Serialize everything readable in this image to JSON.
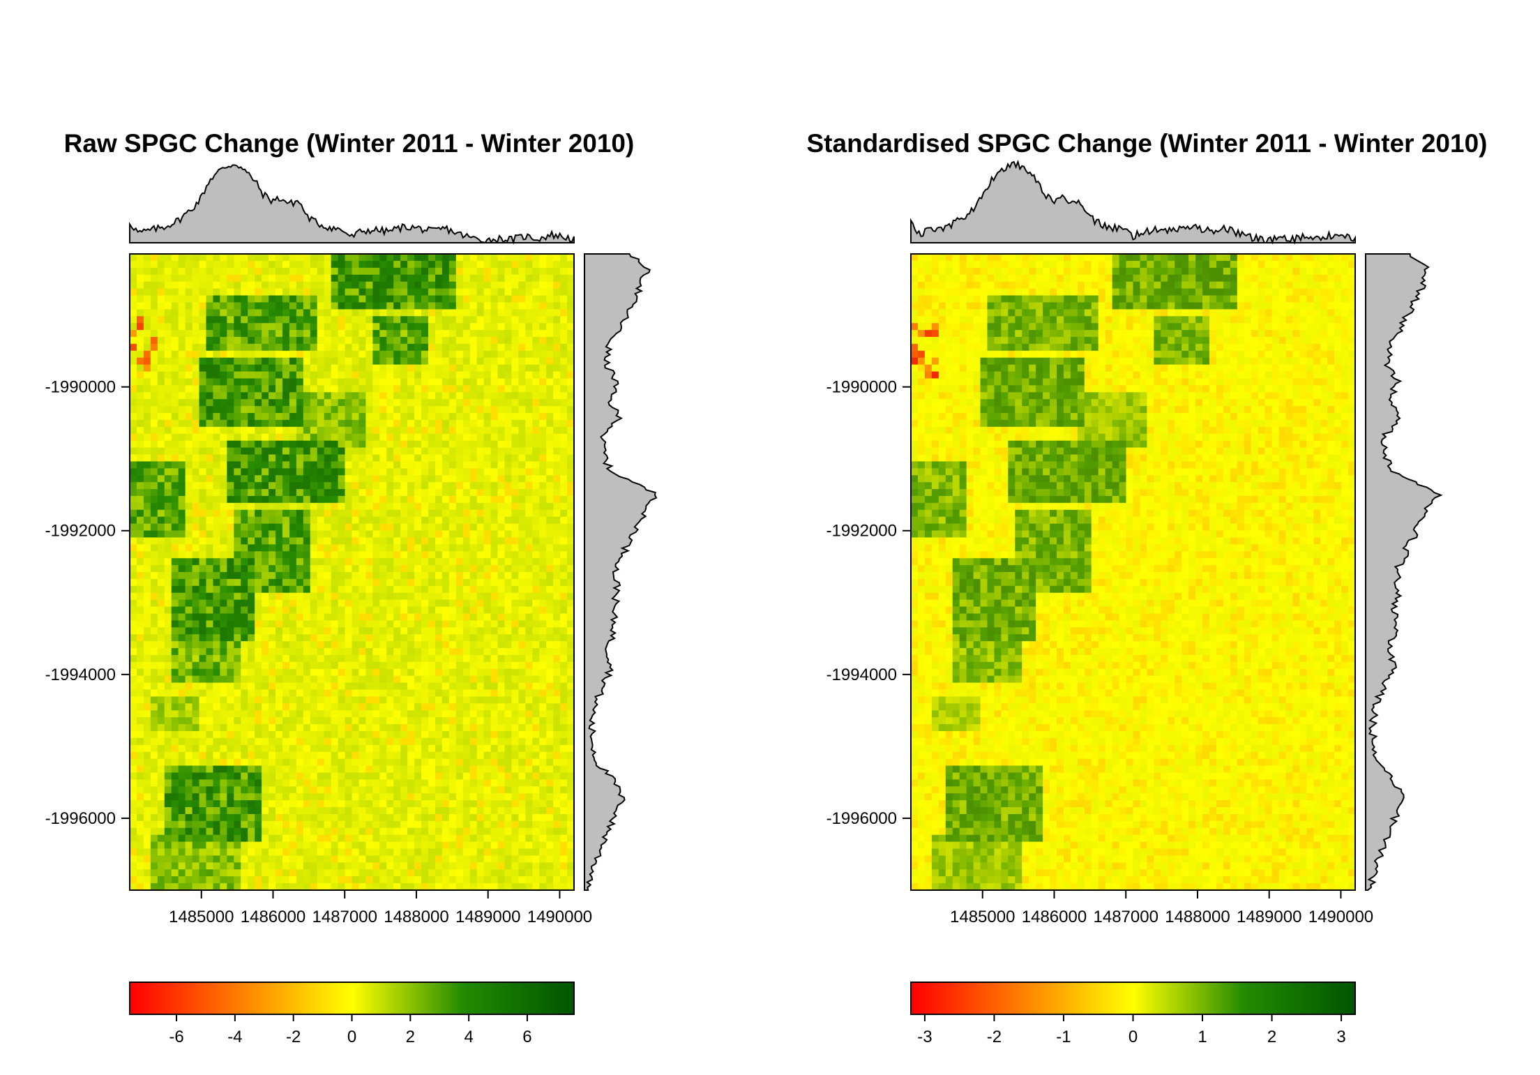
{
  "chart_data": [
    {
      "type": "heatmap",
      "title": "Raw SPGC Change (Winter 2011 - Winter 2010)",
      "xlabel": "",
      "ylabel": "",
      "x_ticks": [
        "1485000",
        "1486000",
        "1487000",
        "1488000",
        "1489000",
        "1490000"
      ],
      "y_ticks": [
        "-1990000",
        "-1992000",
        "-1994000",
        "-1996000"
      ],
      "xlim": [
        1484000,
        1490200
      ],
      "ylim": [
        -1997000,
        -1988150
      ],
      "colorbar": {
        "ticks": [
          "-6",
          "-4",
          "-2",
          "0",
          "2",
          "4",
          "6"
        ],
        "range": [
          -7.6,
          7.6
        ],
        "colors": [
          "#ff0000",
          "#ff8000",
          "#ffff00",
          "#228b00",
          "#005500"
        ]
      },
      "marginal_histograms": true
    },
    {
      "type": "heatmap",
      "title": "Standardised SPGC Change (Winter 2011 - Winter 2010)",
      "xlabel": "",
      "ylabel": "",
      "x_ticks": [
        "1485000",
        "1486000",
        "1487000",
        "1488000",
        "1489000",
        "1490000"
      ],
      "y_ticks": [
        "-1990000",
        "-1992000",
        "-1994000",
        "-1996000"
      ],
      "xlim": [
        1484000,
        1490200
      ],
      "ylim": [
        -1997000,
        -1988150
      ],
      "colorbar": {
        "ticks": [
          "-3",
          "-2",
          "-1",
          "0",
          "1",
          "2",
          "3"
        ],
        "range": [
          -3.2,
          3.2
        ],
        "colors": [
          "#ff0000",
          "#ff8000",
          "#ffff00",
          "#228b00",
          "#005500"
        ]
      },
      "marginal_histograms": true
    }
  ]
}
